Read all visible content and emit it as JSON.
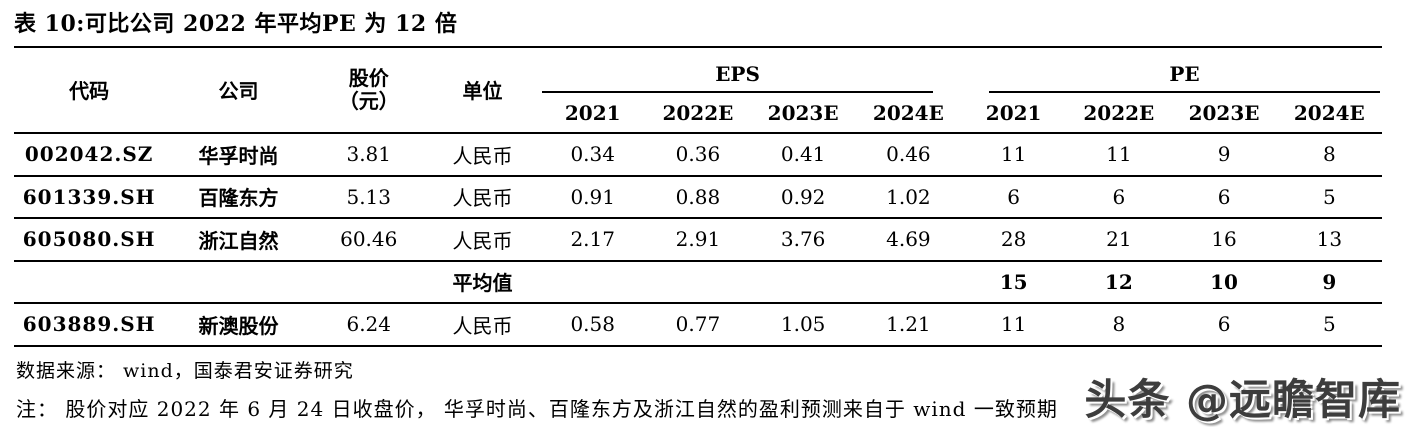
{
  "title": "表 10:可比公司 2022 年平均PE 为 12 倍",
  "table": {
    "headers": {
      "code": "代码",
      "company": "公司",
      "price_line1": "股价",
      "price_line2": "（元）",
      "unit": "单位",
      "eps_group": "EPS",
      "pe_group": "PE",
      "years": [
        "2021",
        "2022E",
        "2023E",
        "2024E"
      ]
    },
    "rows": [
      {
        "code": "002042.SZ",
        "company": "华孚时尚",
        "price": "3.81",
        "unit": "人民币",
        "eps": [
          "0.34",
          "0.36",
          "0.41",
          "0.46"
        ],
        "pe": [
          "11",
          "11",
          "9",
          "8"
        ]
      },
      {
        "code": "601339.SH",
        "company": "百隆东方",
        "price": "5.13",
        "unit": "人民币",
        "eps": [
          "0.91",
          "0.88",
          "0.92",
          "1.02"
        ],
        "pe": [
          "6",
          "6",
          "6",
          "5"
        ]
      },
      {
        "code": "605080.SH",
        "company": "浙江自然",
        "price": "60.46",
        "unit": "人民币",
        "eps": [
          "2.17",
          "2.91",
          "3.76",
          "4.69"
        ],
        "pe": [
          "28",
          "21",
          "16",
          "13"
        ]
      }
    ],
    "average_row": {
      "label": "平均值",
      "pe": [
        "15",
        "12",
        "10",
        "9"
      ]
    },
    "extra_row": {
      "code": "603889.SH",
      "company": "新澳股份",
      "price": "6.24",
      "unit": "人民币",
      "eps": [
        "0.58",
        "0.77",
        "1.05",
        "1.21"
      ],
      "pe": [
        "11",
        "8",
        "6",
        "5"
      ]
    }
  },
  "footer": {
    "source": "数据来源： wind，国泰君安证券研究",
    "note": "注： 股价对应 2022 年 6 月 24 日收盘价， 华孚时尚、百隆东方及浙江自然的盈利预测来自于 wind 一致预期"
  },
  "watermark": "头条 @远瞻智库",
  "colors": {
    "text": "#000000",
    "line": "#000000",
    "background": "#ffffff",
    "watermark": "#3d3d3d"
  }
}
